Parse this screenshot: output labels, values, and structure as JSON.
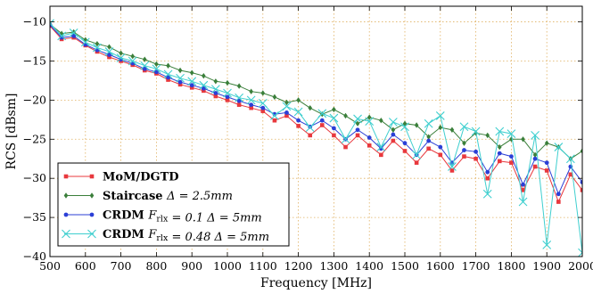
{
  "chart_data": {
    "type": "line",
    "xlabel": "Frequency [MHz]",
    "ylabel": "RCS [dBsm]",
    "xlim": [
      500,
      2000
    ],
    "ylim": [
      -40,
      -8
    ],
    "xticks": [
      500,
      600,
      700,
      800,
      900,
      1000,
      1100,
      1200,
      1300,
      1400,
      1500,
      1600,
      1700,
      1800,
      1900,
      2000
    ],
    "yticks": [
      -40,
      -35,
      -30,
      -25,
      -20,
      -15,
      -10
    ],
    "grid": true,
    "legend_position": "lower-left",
    "series": [
      {
        "name": "MoM/DGTD",
        "color": "#e8383d",
        "marker": "square",
        "x": [
          500,
          533,
          567,
          600,
          633,
          667,
          700,
          733,
          767,
          800,
          833,
          867,
          900,
          933,
          967,
          1000,
          1033,
          1067,
          1100,
          1133,
          1167,
          1200,
          1233,
          1267,
          1300,
          1333,
          1367,
          1400,
          1433,
          1467,
          1500,
          1533,
          1567,
          1600,
          1633,
          1667,
          1700,
          1733,
          1767,
          1800,
          1833,
          1867,
          1900,
          1933,
          1967,
          2000
        ],
        "y": [
          -10.5,
          -12.2,
          -12.0,
          -13.0,
          -13.8,
          -14.5,
          -15.0,
          -15.5,
          -16.2,
          -16.6,
          -17.4,
          -18.0,
          -18.4,
          -18.8,
          -19.5,
          -20.0,
          -20.6,
          -21.0,
          -21.4,
          -22.6,
          -22.0,
          -23.3,
          -24.5,
          -23.2,
          -24.5,
          -26.0,
          -24.5,
          -25.8,
          -27.0,
          -25.2,
          -26.5,
          -28.0,
          -26.2,
          -27.0,
          -29.0,
          -27.2,
          -27.5,
          -30.0,
          -27.8,
          -28.0,
          -31.5,
          -28.5,
          -29.0,
          -33.0,
          -29.5,
          -31.5
        ]
      },
      {
        "name": "Staircase Δ = 2.5mm",
        "color": "#3a7f3a",
        "marker": "diamond",
        "x": [
          500,
          533,
          567,
          600,
          633,
          667,
          700,
          733,
          767,
          800,
          833,
          867,
          900,
          933,
          967,
          1000,
          1033,
          1067,
          1100,
          1133,
          1167,
          1200,
          1233,
          1267,
          1300,
          1333,
          1367,
          1400,
          1433,
          1467,
          1500,
          1533,
          1567,
          1600,
          1633,
          1667,
          1700,
          1733,
          1767,
          1800,
          1833,
          1867,
          1900,
          1933,
          1967,
          2000
        ],
        "y": [
          -10.3,
          -11.5,
          -11.3,
          -12.3,
          -12.8,
          -13.2,
          -14.0,
          -14.4,
          -14.8,
          -15.4,
          -15.6,
          -16.2,
          -16.5,
          -16.9,
          -17.6,
          -17.8,
          -18.2,
          -18.9,
          -19.1,
          -19.6,
          -20.3,
          -20.0,
          -21.0,
          -21.8,
          -21.2,
          -22.0,
          -23.0,
          -22.2,
          -22.6,
          -23.8,
          -23.0,
          -23.2,
          -24.7,
          -23.5,
          -23.8,
          -25.5,
          -24.2,
          -24.5,
          -26.0,
          -25.0,
          -25.0,
          -27.0,
          -25.5,
          -26.0,
          -27.5,
          -26.5
        ]
      },
      {
        "name": "CRDM F_rlx = 0.1 Δ = 5mm",
        "color": "#2b3fd6",
        "marker": "circle",
        "x": [
          500,
          533,
          567,
          600,
          633,
          667,
          700,
          733,
          767,
          800,
          833,
          867,
          900,
          933,
          967,
          1000,
          1033,
          1067,
          1100,
          1133,
          1167,
          1200,
          1233,
          1267,
          1300,
          1333,
          1367,
          1400,
          1433,
          1467,
          1500,
          1533,
          1567,
          1600,
          1633,
          1667,
          1700,
          1733,
          1767,
          1800,
          1833,
          1867,
          1900,
          1933,
          1967,
          2000
        ],
        "y": [
          -10.4,
          -12.0,
          -11.8,
          -12.9,
          -13.6,
          -14.2,
          -14.8,
          -15.3,
          -16.0,
          -16.4,
          -17.1,
          -17.7,
          -18.1,
          -18.5,
          -19.1,
          -19.6,
          -20.1,
          -20.6,
          -21.0,
          -21.8,
          -21.6,
          -22.6,
          -23.4,
          -22.6,
          -23.6,
          -25.0,
          -23.8,
          -24.8,
          -26.2,
          -24.4,
          -25.5,
          -27.0,
          -25.2,
          -26.0,
          -28.0,
          -26.4,
          -26.6,
          -29.2,
          -26.8,
          -27.2,
          -30.8,
          -27.5,
          -28.0,
          -32.0,
          -28.5,
          -30.5
        ]
      },
      {
        "name": "CRDM F_rlx = 0.48 Δ = 5mm",
        "color": "#3fcfcf",
        "marker": "x",
        "x": [
          500,
          533,
          567,
          600,
          633,
          667,
          700,
          733,
          767,
          800,
          833,
          867,
          900,
          933,
          967,
          1000,
          1033,
          1067,
          1100,
          1133,
          1167,
          1200,
          1233,
          1267,
          1300,
          1333,
          1367,
          1400,
          1433,
          1467,
          1500,
          1533,
          1567,
          1600,
          1633,
          1667,
          1700,
          1733,
          1767,
          1800,
          1833,
          1867,
          1900,
          1933,
          1967,
          2000
        ],
        "y": [
          -10.2,
          -11.8,
          -11.4,
          -12.6,
          -13.3,
          -13.8,
          -14.6,
          -15.0,
          -15.6,
          -16.0,
          -16.7,
          -17.2,
          -17.6,
          -18.1,
          -18.6,
          -19.1,
          -19.7,
          -20.0,
          -20.4,
          -22.0,
          -20.8,
          -21.5,
          -23.5,
          -21.7,
          -22.3,
          -25.0,
          -22.4,
          -22.7,
          -26.0,
          -22.8,
          -23.4,
          -27.0,
          -23.0,
          -22.0,
          -28.5,
          -23.4,
          -24.0,
          -32.0,
          -24.0,
          -24.3,
          -33.0,
          -24.5,
          -38.5,
          -26.0,
          -27.5,
          -39.5
        ]
      }
    ]
  }
}
